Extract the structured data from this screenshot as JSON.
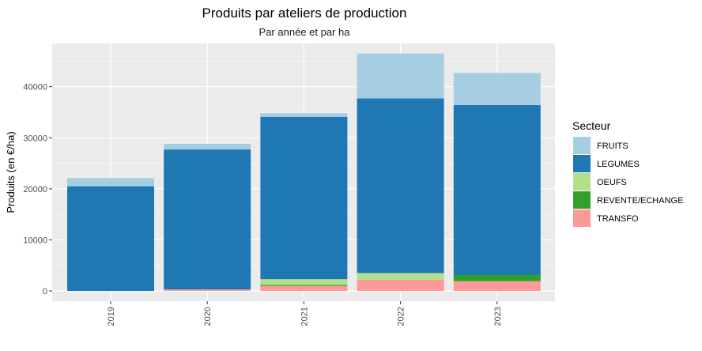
{
  "chart_data": {
    "type": "bar",
    "stacked": true,
    "title": "Produits par ateliers de production",
    "subtitle": "Par année et par ha",
    "xlabel": "",
    "ylabel": "Produits (en €/ha)",
    "ylim": [
      0,
      49000
    ],
    "yticks": [
      0,
      10000,
      20000,
      30000,
      40000
    ],
    "grid": true,
    "legend_title": "Secteur",
    "legend_position": "right",
    "categories": [
      "2019",
      "2020",
      "2021",
      "2022",
      "2023"
    ],
    "series": [
      {
        "name": "TRANSFO",
        "color": "#fb9a99",
        "values": [
          0,
          300,
          1000,
          2200,
          1900
        ]
      },
      {
        "name": "REVENTE/ECHANGE",
        "color": "#33a02c",
        "values": [
          0,
          0,
          200,
          0,
          1200
        ]
      },
      {
        "name": "OEUFS",
        "color": "#b2df8a",
        "values": [
          0,
          0,
          1100,
          1300,
          0
        ]
      },
      {
        "name": "LEGUMES",
        "color": "#1f78b4",
        "values": [
          20500,
          27400,
          31800,
          34200,
          33300
        ]
      },
      {
        "name": "FRUITS",
        "color": "#a6cee3",
        "values": [
          1600,
          1100,
          700,
          8800,
          6300
        ]
      }
    ],
    "legend_order": [
      "FRUITS",
      "LEGUMES",
      "OEUFS",
      "REVENTE/ECHANGE",
      "TRANSFO"
    ]
  }
}
